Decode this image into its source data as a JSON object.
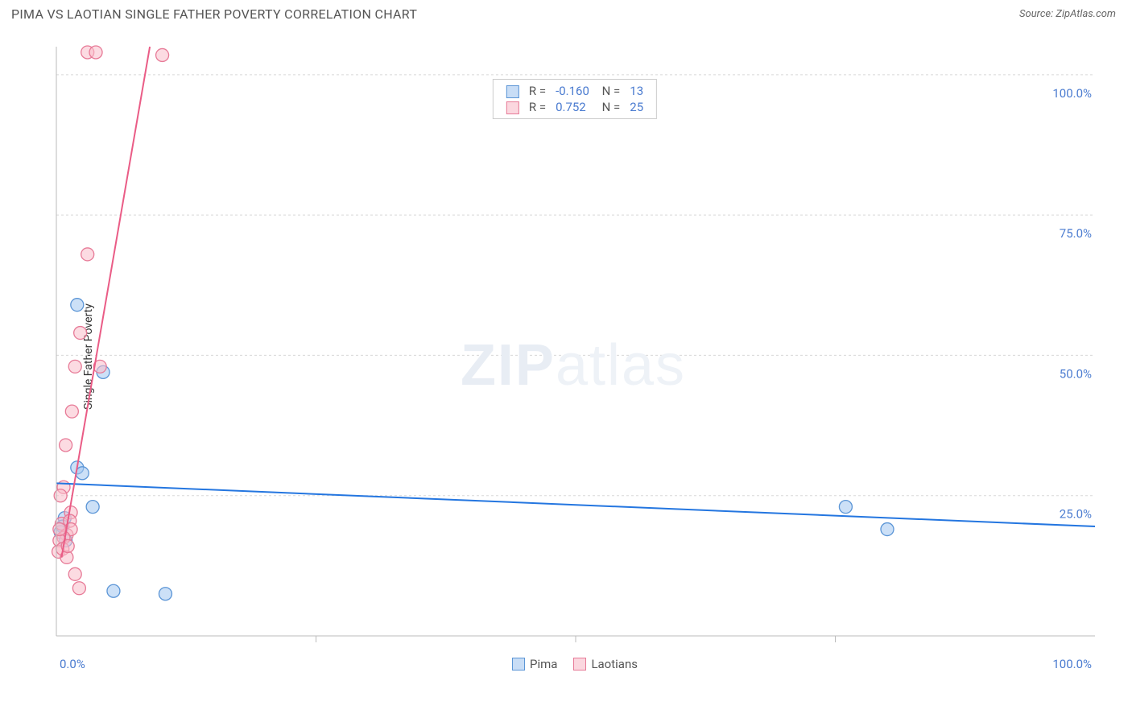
{
  "title": "PIMA VS LAOTIAN SINGLE FATHER POVERTY CORRELATION CHART",
  "source_label": "Source: ZipAtlas.com",
  "y_axis_label": "Single Father Poverty",
  "watermark": {
    "bold": "ZIP",
    "rest": "atlas"
  },
  "chart": {
    "type": "scatter",
    "xlim": [
      0,
      100
    ],
    "ylim": [
      0,
      105
    ],
    "x_ticks_major": [
      0,
      100
    ],
    "x_ticks_minor": [
      25,
      50,
      75
    ],
    "y_ticks": [
      25,
      50,
      75,
      100
    ],
    "x_tick_labels": {
      "0": "0.0%",
      "100": "100.0%"
    },
    "y_tick_labels": {
      "25": "25.0%",
      "50": "50.0%",
      "75": "75.0%",
      "100": "100.0%"
    },
    "background_color": "#ffffff",
    "grid_color": "#d8d8d8",
    "axis_color": "#bbbbbb",
    "marker_radius": 8,
    "series": [
      {
        "name": "Pima",
        "color_fill": "rgba(163,199,240,0.55)",
        "color_stroke": "#5b95d6",
        "trend_color": "#2476e0",
        "R": "-0.160",
        "N": "13",
        "points": [
          [
            2.0,
            59
          ],
          [
            4.5,
            47
          ],
          [
            2.0,
            30
          ],
          [
            2.5,
            29
          ],
          [
            0.8,
            21
          ],
          [
            0.6,
            19.5
          ],
          [
            0.4,
            18.5
          ],
          [
            3.5,
            23
          ],
          [
            80,
            19
          ],
          [
            76,
            23
          ],
          [
            5.5,
            8
          ],
          [
            10.5,
            7.5
          ],
          [
            0.9,
            17
          ]
        ],
        "trend_line": {
          "x1": 0,
          "y1": 27.2,
          "x2": 100,
          "y2": 19.5
        }
      },
      {
        "name": "Laotians",
        "color_fill": "rgba(249,189,202,0.55)",
        "color_stroke": "#e77a97",
        "trend_color": "#ea5c86",
        "R": "0.752",
        "N": "25",
        "points": [
          [
            3.0,
            104
          ],
          [
            3.8,
            104
          ],
          [
            10.2,
            103.5
          ],
          [
            3.0,
            68
          ],
          [
            2.3,
            54
          ],
          [
            1.8,
            48
          ],
          [
            4.2,
            48
          ],
          [
            1.5,
            40
          ],
          [
            0.9,
            34
          ],
          [
            0.7,
            26.5
          ],
          [
            0.4,
            25
          ],
          [
            1.4,
            22
          ],
          [
            0.5,
            20
          ],
          [
            1.3,
            20.5
          ],
          [
            1.0,
            18
          ],
          [
            1.4,
            19
          ],
          [
            0.7,
            17.5
          ],
          [
            0.3,
            17
          ],
          [
            0.2,
            15
          ],
          [
            0.6,
            15.5
          ],
          [
            1.0,
            14
          ],
          [
            1.8,
            11
          ],
          [
            2.2,
            8.5
          ],
          [
            0.3,
            19
          ],
          [
            1.1,
            16
          ]
        ],
        "trend_line": {
          "x1": 0.5,
          "y1": 14,
          "x2": 9.0,
          "y2": 105
        }
      }
    ]
  },
  "bottom_legend": [
    {
      "swatch": "blue",
      "label": "Pima"
    },
    {
      "swatch": "pink",
      "label": "Laotians"
    }
  ]
}
